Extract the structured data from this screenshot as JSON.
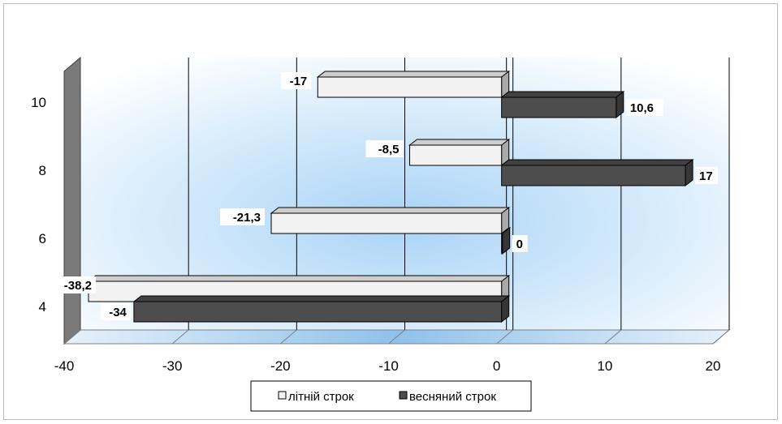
{
  "chart_data": {
    "type": "bar",
    "orientation": "horizontal",
    "categories": [
      "4",
      "6",
      "8",
      "10"
    ],
    "series": [
      {
        "name": "літній строк",
        "values": [
          -38.2,
          -21.3,
          -8.5,
          -17
        ],
        "labels": [
          "-38,2",
          "-21,3",
          "-8,5",
          "-17"
        ],
        "color": "#f2f2f2"
      },
      {
        "name": "весняний строк",
        "values": [
          -34,
          0,
          17,
          10.6
        ],
        "labels": [
          "-34",
          "0",
          "17",
          "10,6"
        ],
        "color": "#4d4d4d"
      }
    ],
    "x_ticks": [
      "-40",
      "-30",
      "-20",
      "-10",
      "0",
      "10",
      "20"
    ],
    "xlim": [
      -40,
      20
    ],
    "grid": true,
    "legend_position": "bottom"
  },
  "colors": {
    "back_wall_center": "#a9d3f7",
    "floor": "#8fc1ea",
    "side_wall": "#7a7a7a",
    "grid": "#000000"
  }
}
